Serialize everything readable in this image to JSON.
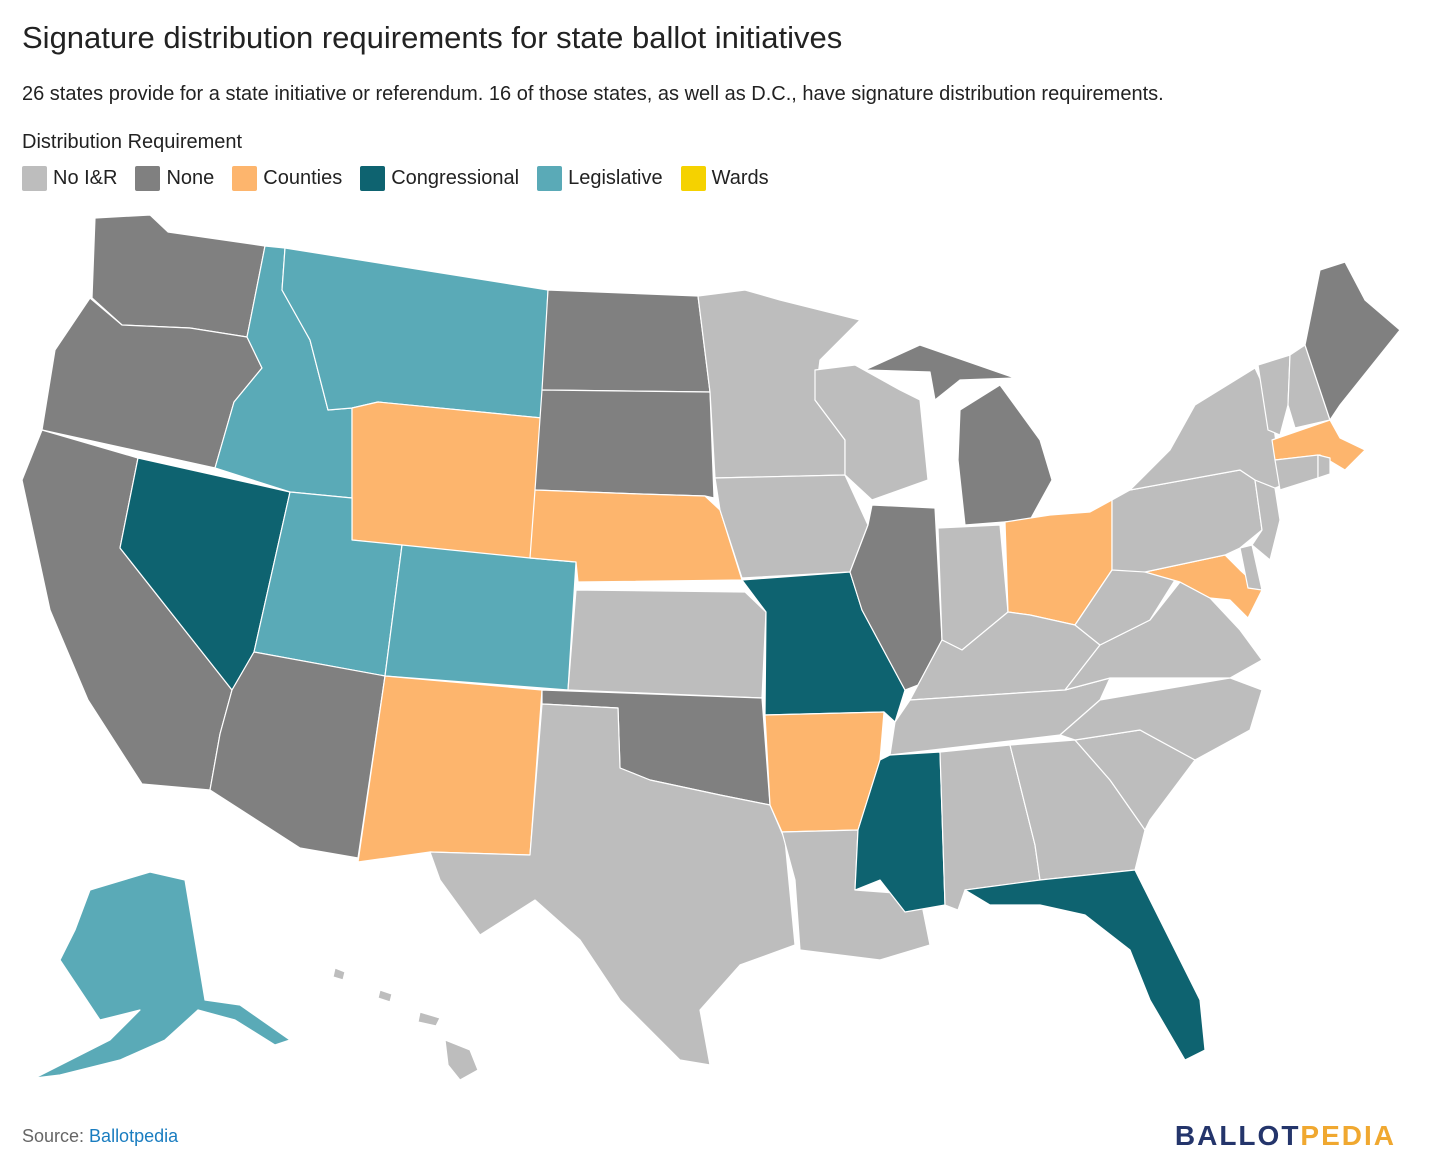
{
  "header": {
    "title": "Signature distribution requirements for state ballot initiatives",
    "subtitle": "26 states provide for a state initiative or referendum. 16 of those states, as well as D.C., have signature distribution requirements."
  },
  "legend": {
    "title": "Distribution Requirement",
    "items": [
      {
        "key": "noir",
        "label": "No I&R",
        "color": "#bdbdbd"
      },
      {
        "key": "none",
        "label": "None",
        "color": "#808080"
      },
      {
        "key": "counties",
        "label": "Counties",
        "color": "#fdb56d"
      },
      {
        "key": "congressional",
        "label": "Congressional",
        "color": "#0e6370"
      },
      {
        "key": "legislative",
        "label": "Legislative",
        "color": "#5aaab7"
      },
      {
        "key": "wards",
        "label": "Wards",
        "color": "#f5d200"
      }
    ]
  },
  "regions": {
    "WA": "none",
    "OR": "none",
    "CA": "none",
    "AZ": "none",
    "ND": "none",
    "SD": "none",
    "OK": "none",
    "IL": "none",
    "MI": "none",
    "ME": "none",
    "ID": "legislative",
    "MT": "legislative",
    "UT": "legislative",
    "CO": "legislative",
    "AK": "legislative",
    "NV": "congressional",
    "MO": "congressional",
    "MS": "congressional",
    "FL": "congressional",
    "WY": "counties",
    "NE": "counties",
    "NM": "counties",
    "AR": "counties",
    "OH": "counties",
    "MD": "counties",
    "MA": "counties",
    "MN": "noir",
    "WI": "noir",
    "IA": "noir",
    "KS": "noir",
    "TX": "noir",
    "LA": "noir",
    "IN": "noir",
    "KY": "noir",
    "TN": "noir",
    "AL": "noir",
    "GA": "noir",
    "SC": "noir",
    "NC": "noir",
    "VA": "noir",
    "WV": "noir",
    "PA": "noir",
    "NY": "noir",
    "VT": "noir",
    "NH": "noir",
    "CT": "noir",
    "RI": "noir",
    "NJ": "noir",
    "DE": "noir",
    "HI": "noir"
  },
  "footer": {
    "source_prefix": "Source: ",
    "source_name": "Ballotpedia",
    "logo_part1": "BALLOT",
    "logo_part2": "PEDIA"
  }
}
